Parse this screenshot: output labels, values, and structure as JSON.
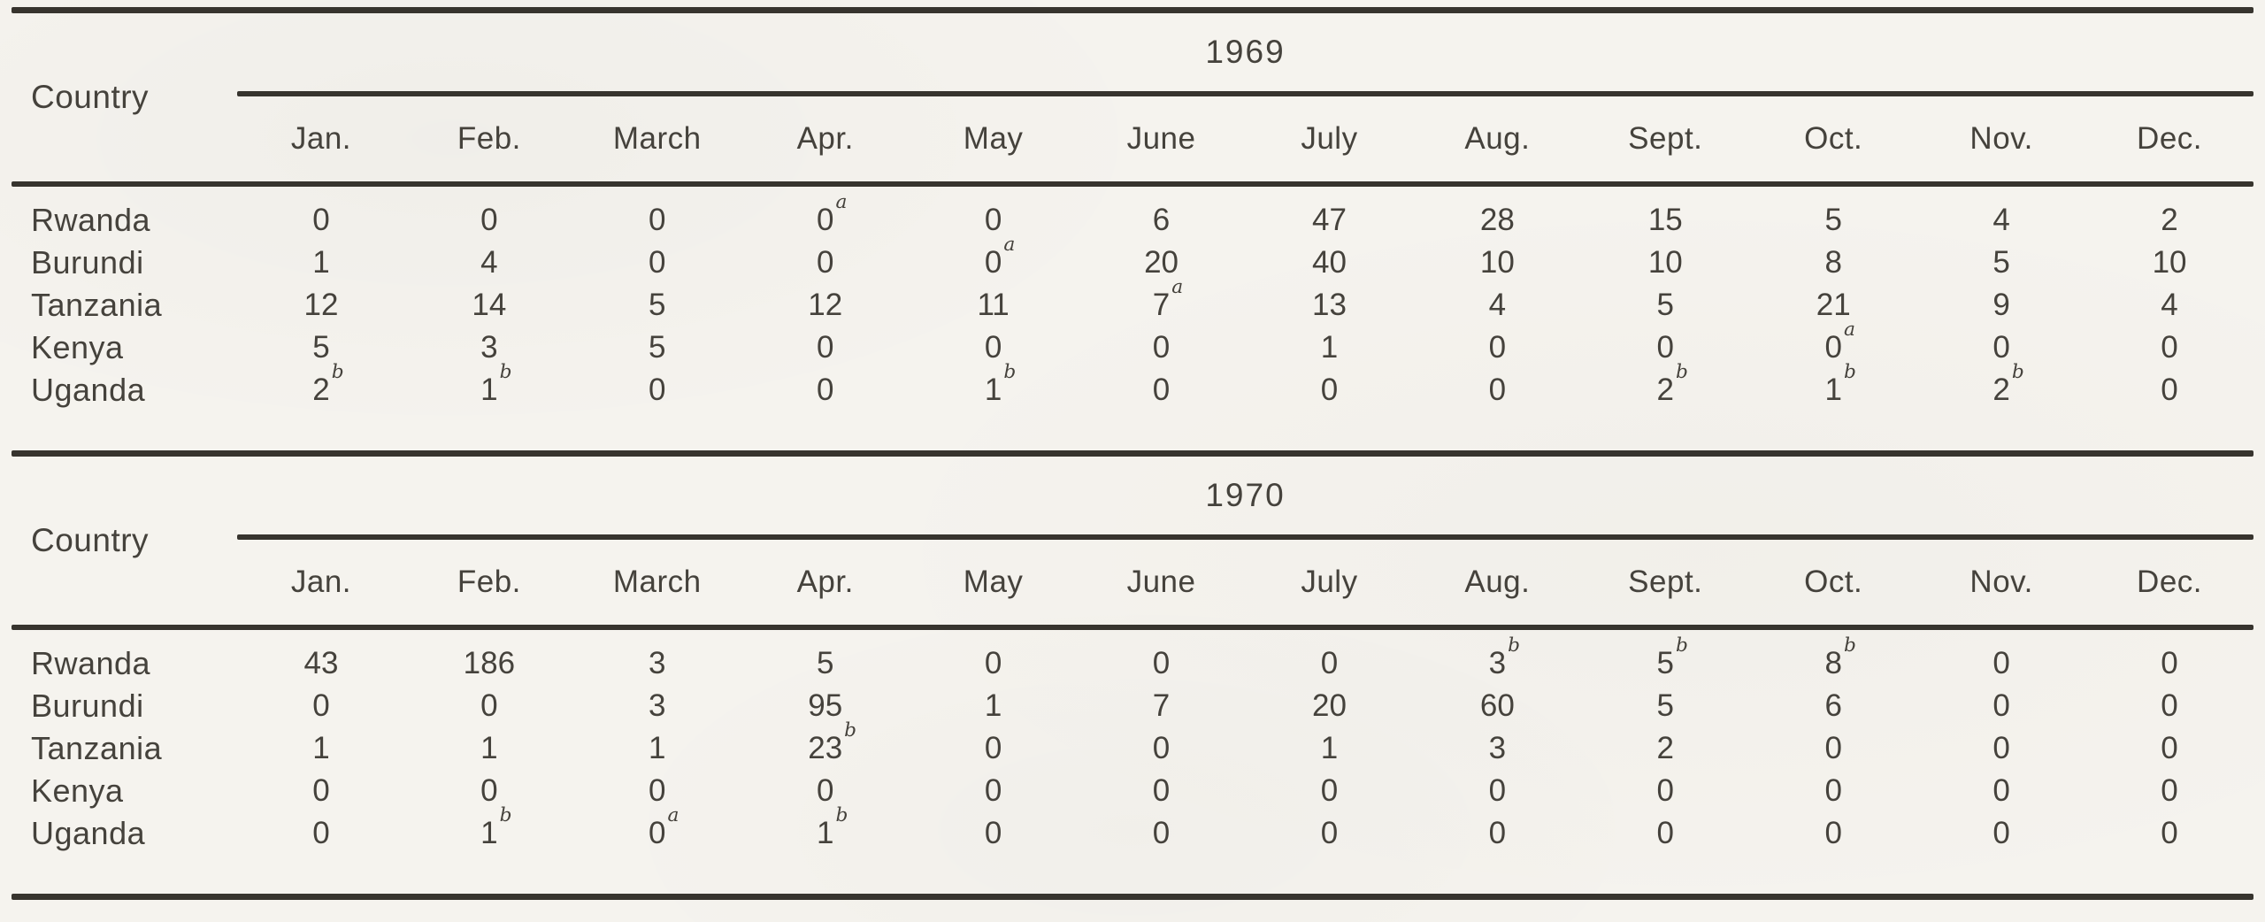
{
  "meta": {
    "paper_color": "#f5f3ee",
    "ink_color": "#45423c",
    "rule_color": "#37342e",
    "footnote_markers_seen": [
      "a",
      "b"
    ]
  },
  "tables": [
    {
      "year": "1969",
      "country_header": "Country",
      "months": [
        "Jan.",
        "Feb.",
        "March",
        "Apr.",
        "May",
        "June",
        "July",
        "Aug.",
        "Sept.",
        "Oct.",
        "Nov.",
        "Dec."
      ],
      "rows": [
        {
          "country": "Rwanda",
          "values": [
            {
              "v": "0"
            },
            {
              "v": "0"
            },
            {
              "v": "0"
            },
            {
              "v": "0",
              "sup": "a"
            },
            {
              "v": "0"
            },
            {
              "v": "6"
            },
            {
              "v": "47"
            },
            {
              "v": "28"
            },
            {
              "v": "15"
            },
            {
              "v": "5"
            },
            {
              "v": "4"
            },
            {
              "v": "2"
            }
          ]
        },
        {
          "country": "Burundi",
          "values": [
            {
              "v": "1"
            },
            {
              "v": "4"
            },
            {
              "v": "0"
            },
            {
              "v": "0"
            },
            {
              "v": "0",
              "sup": "a"
            },
            {
              "v": "20"
            },
            {
              "v": "40"
            },
            {
              "v": "10"
            },
            {
              "v": "10"
            },
            {
              "v": "8"
            },
            {
              "v": "5"
            },
            {
              "v": "10"
            }
          ]
        },
        {
          "country": "Tanzania",
          "values": [
            {
              "v": "12"
            },
            {
              "v": "14"
            },
            {
              "v": "5"
            },
            {
              "v": "12"
            },
            {
              "v": "11"
            },
            {
              "v": "7",
              "sup": "a"
            },
            {
              "v": "13"
            },
            {
              "v": "4"
            },
            {
              "v": "5"
            },
            {
              "v": "21"
            },
            {
              "v": "9"
            },
            {
              "v": "4"
            }
          ]
        },
        {
          "country": "Kenya",
          "values": [
            {
              "v": "5"
            },
            {
              "v": "3"
            },
            {
              "v": "5"
            },
            {
              "v": "0"
            },
            {
              "v": "0"
            },
            {
              "v": "0"
            },
            {
              "v": "1"
            },
            {
              "v": "0"
            },
            {
              "v": "0"
            },
            {
              "v": "0",
              "sup": "a"
            },
            {
              "v": "0"
            },
            {
              "v": "0"
            }
          ]
        },
        {
          "country": "Uganda",
          "values": [
            {
              "v": "2",
              "sup": "b"
            },
            {
              "v": "1",
              "sup": "b"
            },
            {
              "v": "0"
            },
            {
              "v": "0"
            },
            {
              "v": "1",
              "sup": "b"
            },
            {
              "v": "0"
            },
            {
              "v": "0"
            },
            {
              "v": "0"
            },
            {
              "v": "2",
              "sup": "b"
            },
            {
              "v": "1",
              "sup": "b"
            },
            {
              "v": "2",
              "sup": "b"
            },
            {
              "v": "0"
            }
          ]
        }
      ]
    },
    {
      "year": "1970",
      "country_header": "Country",
      "months": [
        "Jan.",
        "Feb.",
        "March",
        "Apr.",
        "May",
        "June",
        "July",
        "Aug.",
        "Sept.",
        "Oct.",
        "Nov.",
        "Dec."
      ],
      "rows": [
        {
          "country": "Rwanda",
          "values": [
            {
              "v": "43"
            },
            {
              "v": "186"
            },
            {
              "v": "3"
            },
            {
              "v": "5"
            },
            {
              "v": "0"
            },
            {
              "v": "0"
            },
            {
              "v": "0"
            },
            {
              "v": "3",
              "sup": "b"
            },
            {
              "v": "5",
              "sup": "b"
            },
            {
              "v": "8",
              "sup": "b"
            },
            {
              "v": "0"
            },
            {
              "v": "0"
            }
          ]
        },
        {
          "country": "Burundi",
          "values": [
            {
              "v": "0"
            },
            {
              "v": "0"
            },
            {
              "v": "3"
            },
            {
              "v": "95"
            },
            {
              "v": "1"
            },
            {
              "v": "7"
            },
            {
              "v": "20"
            },
            {
              "v": "60"
            },
            {
              "v": "5"
            },
            {
              "v": "6"
            },
            {
              "v": "0"
            },
            {
              "v": "0"
            }
          ]
        },
        {
          "country": "Tanzania",
          "values": [
            {
              "v": "1"
            },
            {
              "v": "1"
            },
            {
              "v": "1"
            },
            {
              "v": "23",
              "sup": "b"
            },
            {
              "v": "0"
            },
            {
              "v": "0"
            },
            {
              "v": "1"
            },
            {
              "v": "3"
            },
            {
              "v": "2"
            },
            {
              "v": "0"
            },
            {
              "v": "0"
            },
            {
              "v": "0"
            }
          ]
        },
        {
          "country": "Kenya",
          "values": [
            {
              "v": "0"
            },
            {
              "v": "0"
            },
            {
              "v": "0"
            },
            {
              "v": "0"
            },
            {
              "v": "0"
            },
            {
              "v": "0"
            },
            {
              "v": "0"
            },
            {
              "v": "0"
            },
            {
              "v": "0"
            },
            {
              "v": "0"
            },
            {
              "v": "0"
            },
            {
              "v": "0"
            }
          ]
        },
        {
          "country": "Uganda",
          "values": [
            {
              "v": "0"
            },
            {
              "v": "1",
              "sup": "b"
            },
            {
              "v": "0",
              "sup": "a"
            },
            {
              "v": "1",
              "sup": "b"
            },
            {
              "v": "0"
            },
            {
              "v": "0"
            },
            {
              "v": "0"
            },
            {
              "v": "0"
            },
            {
              "v": "0"
            },
            {
              "v": "0"
            },
            {
              "v": "0"
            },
            {
              "v": "0"
            }
          ]
        }
      ]
    }
  ]
}
